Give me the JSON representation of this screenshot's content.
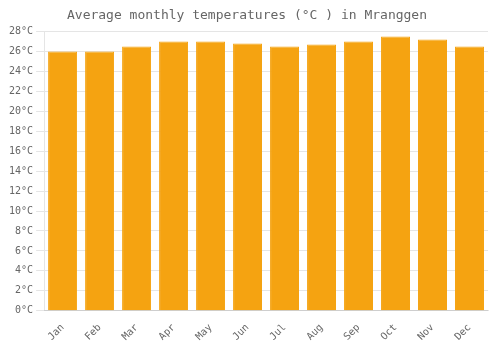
{
  "chart_data": {
    "type": "bar",
    "title": "Average monthly temperatures (°C ) in Mranggen",
    "categories": [
      "Jan",
      "Feb",
      "Mar",
      "Apr",
      "May",
      "Jun",
      "Jul",
      "Aug",
      "Sep",
      "Oct",
      "Nov",
      "Dec"
    ],
    "values": [
      26.0,
      26.0,
      26.5,
      27.0,
      27.0,
      26.8,
      26.5,
      26.7,
      27.0,
      27.5,
      27.2,
      26.5
    ],
    "color": "#F5A311",
    "ylim": [
      0,
      28
    ],
    "yticks": [
      {
        "value": 0,
        "label": "0°C"
      },
      {
        "value": 2,
        "label": "2°C"
      },
      {
        "value": 4,
        "label": "4°C"
      },
      {
        "value": 6,
        "label": "6°C"
      },
      {
        "value": 8,
        "label": "8°C"
      },
      {
        "value": 10,
        "label": "10°C"
      },
      {
        "value": 12,
        "label": "12°C"
      },
      {
        "value": 14,
        "label": "14°C"
      },
      {
        "value": 16,
        "label": "16°C"
      },
      {
        "value": 18,
        "label": "18°C"
      },
      {
        "value": 20,
        "label": "20°C"
      },
      {
        "value": 22,
        "label": "22°C"
      },
      {
        "value": 24,
        "label": "24°C"
      },
      {
        "value": 26,
        "label": "26°C"
      },
      {
        "value": 28,
        "label": "28°C"
      }
    ],
    "grid": true
  }
}
